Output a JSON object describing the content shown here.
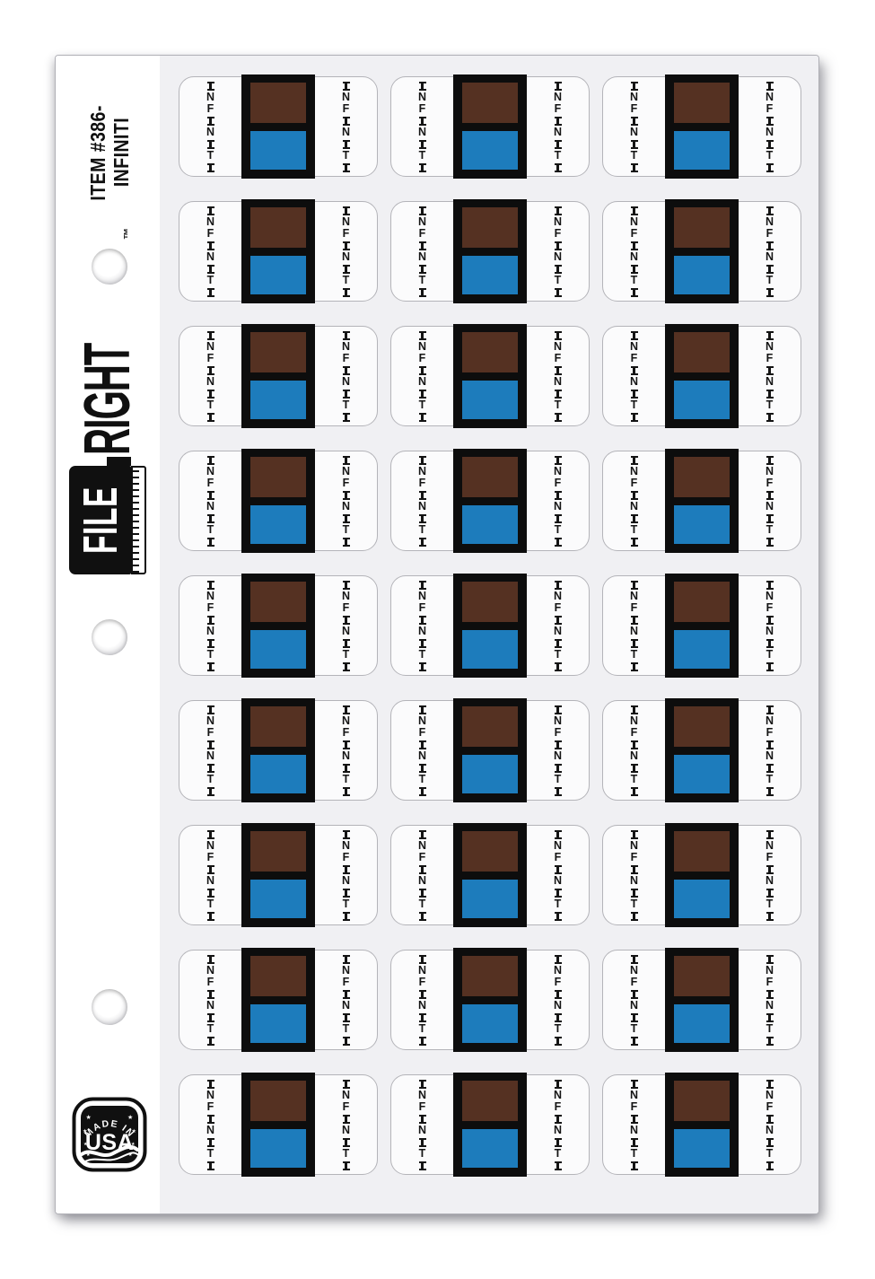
{
  "sheet": {
    "background": "#ffffff",
    "panel_background": "#f0f0f3",
    "hole_count": 3
  },
  "sidebar": {
    "item_code_line1": "ITEM #386-",
    "item_code_line2": "INFINITI",
    "brand": {
      "file_label": "FILE",
      "right_label": "RIGHT",
      "trademark": "™"
    },
    "made_in_usa": {
      "arc_text": "MADE IN",
      "main_text": "USA"
    }
  },
  "labels": {
    "count": 27,
    "columns": 3,
    "rows": 9,
    "text_left": "INFINITI",
    "text_right": "INFINITI",
    "colors": {
      "frame": "#0d0d0d",
      "top_block": "#553122",
      "bottom_block": "#1d7cbc",
      "fill": "#fbfbfc",
      "border": "#b4b4b9"
    }
  }
}
